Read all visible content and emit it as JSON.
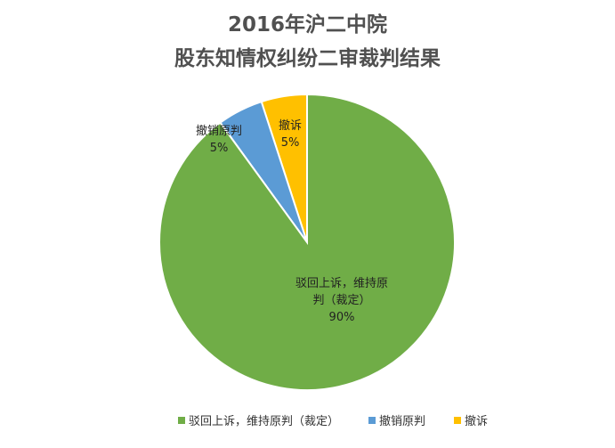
{
  "chart_data": {
    "type": "pie",
    "title": "2016年沪二中院",
    "subtitle": "股东知情权纠纷二审裁判结果",
    "slices": [
      {
        "name": "驳回上诉，维持原判（裁定）",
        "value": 90,
        "percent": "90%",
        "color": "#70AD47",
        "label_lines": [
          "驳回上诉，维持原",
          "判（裁定）"
        ]
      },
      {
        "name": "撤销原判",
        "value": 5,
        "percent": "5%",
        "color": "#5B9BD5",
        "label_lines": [
          "撤销原判"
        ]
      },
      {
        "name": "撤诉",
        "value": 5,
        "percent": "5%",
        "color": "#FFC000",
        "label_lines": [
          "撤诉"
        ]
      }
    ],
    "legend_position": "bottom"
  }
}
